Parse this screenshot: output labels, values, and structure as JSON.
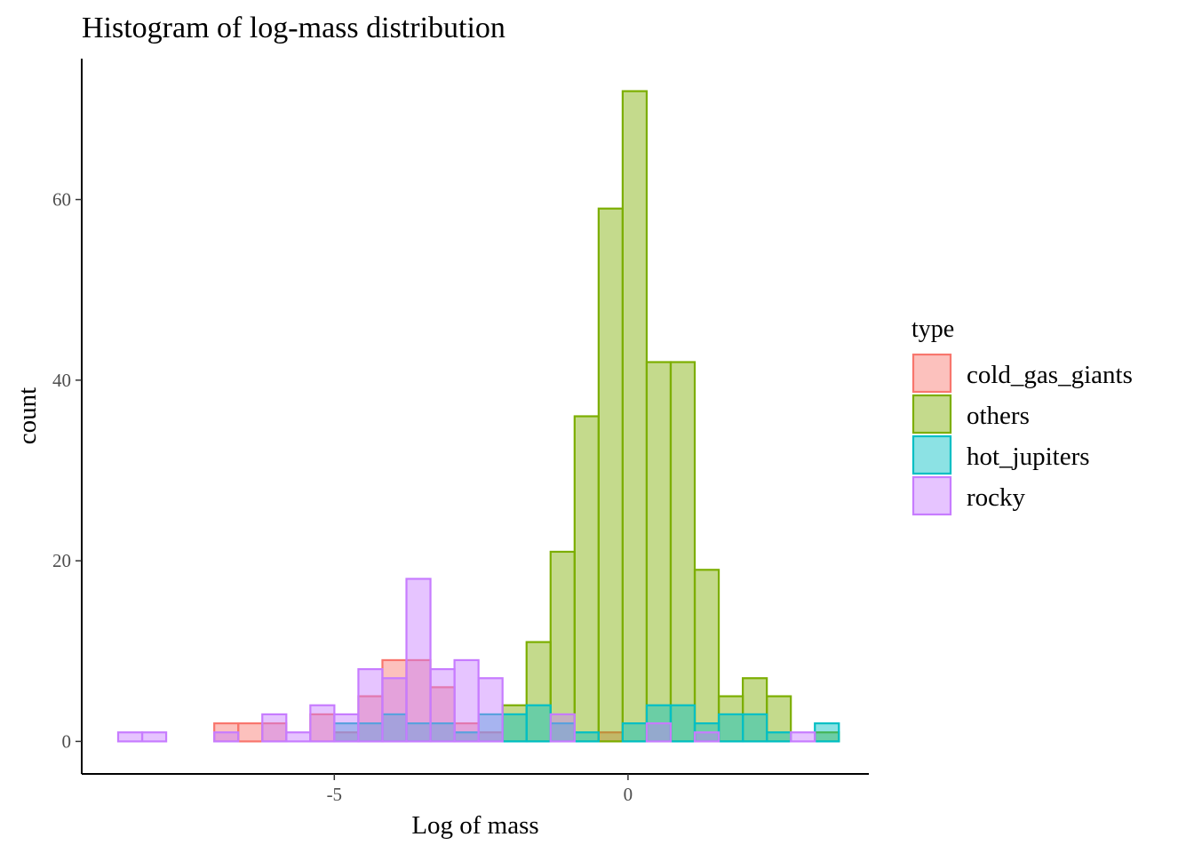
{
  "chart_data": {
    "type": "bar",
    "subtype": "histogram",
    "title": "Histogram of log-mass distribution",
    "xlabel": "Log of mass",
    "ylabel": "count",
    "xlim": [
      -9.3,
      4.1
    ],
    "ylim": [
      -3.6,
      75.6
    ],
    "x_ticks": [
      -5,
      0
    ],
    "x_tick_labels": [
      "-5",
      "0"
    ],
    "y_ticks": [
      0,
      20,
      40,
      60
    ],
    "y_tick_labels": [
      "0",
      "20",
      "40",
      "60"
    ],
    "bin_start": -8.68,
    "bin_width": 0.409,
    "grid": false,
    "legend": {
      "title": "type",
      "position": "right"
    },
    "series": [
      {
        "name": "cold_gas_giants",
        "stroke": "#f8766d",
        "fill": "#f8766d",
        "counts": [
          0,
          0,
          0,
          0,
          2,
          2,
          2,
          0,
          3,
          1,
          5,
          9,
          9,
          6,
          2,
          1,
          0,
          0,
          0,
          0,
          1,
          0,
          0,
          0,
          0,
          0,
          0,
          0,
          0,
          0
        ]
      },
      {
        "name": "others",
        "stroke": "#7cae00",
        "fill": "#7cae00",
        "counts": [
          0,
          0,
          0,
          0,
          0,
          0,
          0,
          0,
          0,
          0,
          0,
          0,
          0,
          0,
          0,
          0,
          4,
          11,
          21,
          36,
          59,
          72,
          42,
          42,
          19,
          5,
          7,
          5,
          0,
          1
        ]
      },
      {
        "name": "hot_jupiters",
        "stroke": "#00bfc4",
        "fill": "#00bfc4",
        "counts": [
          0,
          0,
          0,
          0,
          0,
          0,
          0,
          0,
          0,
          2,
          2,
          3,
          2,
          2,
          1,
          3,
          3,
          4,
          2,
          1,
          0,
          2,
          4,
          4,
          2,
          3,
          3,
          1,
          0,
          2
        ]
      },
      {
        "name": "rocky",
        "stroke": "#c77cff",
        "fill": "#c77cff",
        "counts": [
          1,
          1,
          0,
          0,
          1,
          0,
          3,
          1,
          4,
          3,
          8,
          7,
          18,
          8,
          9,
          7,
          0,
          0,
          3,
          0,
          0,
          0,
          2,
          0,
          1,
          0,
          0,
          0,
          1,
          0
        ]
      }
    ]
  }
}
